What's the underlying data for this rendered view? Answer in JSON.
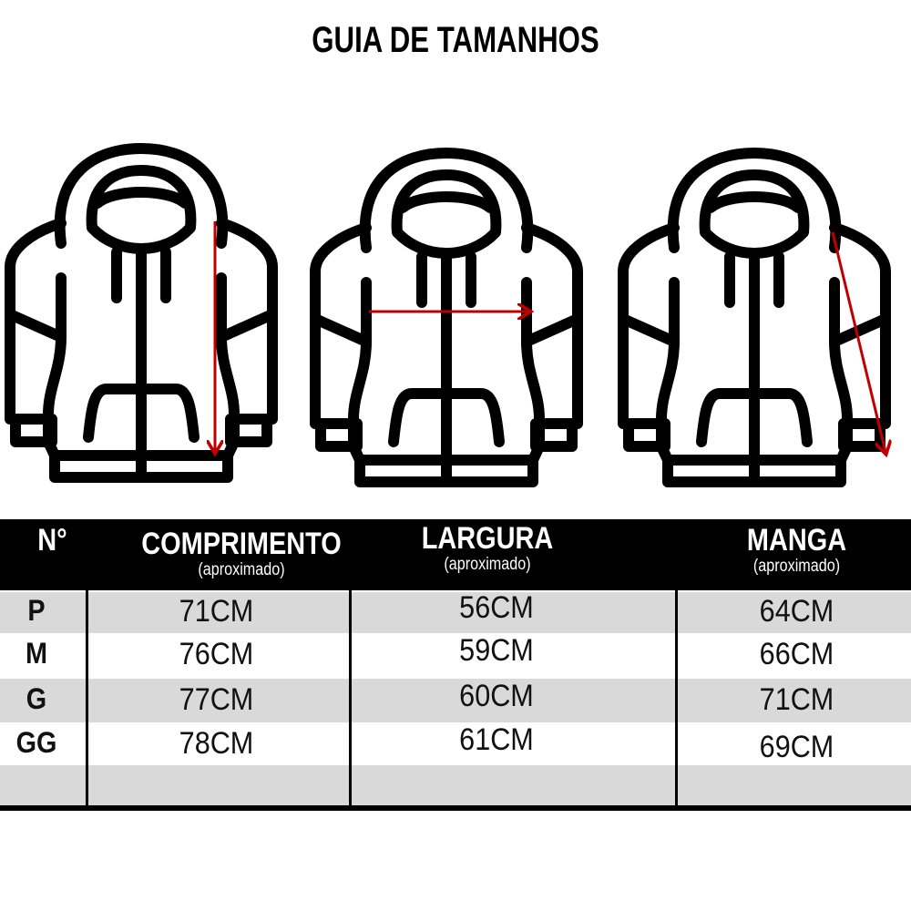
{
  "title": "GUIA DE TAMANHOS",
  "colors": {
    "arrow": "#c00000",
    "header_bg": "#000000",
    "row_gray": "#d9d9d9"
  },
  "illustrations": [
    {
      "icon": "hoodie-icon",
      "measure": "comprimento"
    },
    {
      "icon": "hoodie-icon",
      "measure": "largura"
    },
    {
      "icon": "hoodie-icon",
      "measure": "manga"
    }
  ],
  "table": {
    "headers": [
      {
        "label": "N°",
        "sub": ""
      },
      {
        "label": "COMPRIMENTO",
        "sub": "(aproximado)"
      },
      {
        "label": "LARGURA",
        "sub": "(aproximado)"
      },
      {
        "label": "MANGA",
        "sub": "(aproximado)"
      }
    ],
    "rows": [
      {
        "size": "P",
        "comprimento": "71CM",
        "largura": "56CM",
        "manga": "64CM"
      },
      {
        "size": "M",
        "comprimento": "76CM",
        "largura": "59CM",
        "manga": "66CM"
      },
      {
        "size": "G",
        "comprimento": "77CM",
        "largura": "60CM",
        "manga": "71CM"
      },
      {
        "size": "GG",
        "comprimento": "78CM",
        "largura": "61CM",
        "manga": "69CM"
      },
      {
        "size": "",
        "comprimento": "",
        "largura": "",
        "manga": ""
      }
    ]
  }
}
